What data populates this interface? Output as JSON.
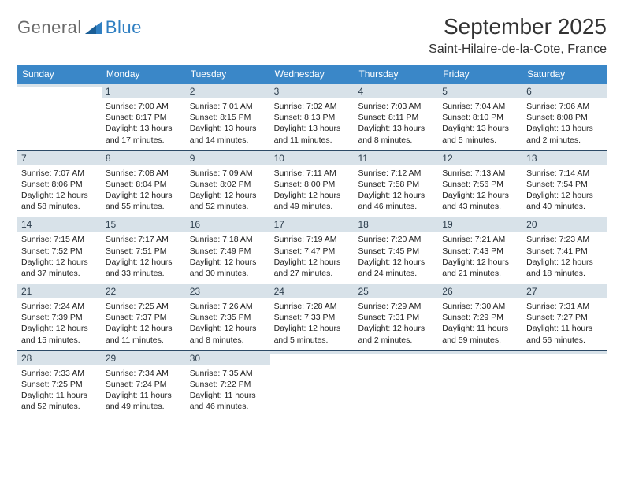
{
  "logo": {
    "text1": "General",
    "text2": "Blue",
    "color1": "#6b6b6b",
    "color2": "#2f7fc2"
  },
  "title": "September 2025",
  "location": "Saint-Hilaire-de-la-Cote, France",
  "header_bg": "#3a87c8",
  "band_bg": "#d8e2e9",
  "border_color": "#2c4a66",
  "days_of_week": [
    "Sunday",
    "Monday",
    "Tuesday",
    "Wednesday",
    "Thursday",
    "Friday",
    "Saturday"
  ],
  "weeks": [
    [
      {
        "n": "",
        "sr": "",
        "ss": "",
        "dl": ""
      },
      {
        "n": "1",
        "sr": "Sunrise: 7:00 AM",
        "ss": "Sunset: 8:17 PM",
        "dl": "Daylight: 13 hours and 17 minutes."
      },
      {
        "n": "2",
        "sr": "Sunrise: 7:01 AM",
        "ss": "Sunset: 8:15 PM",
        "dl": "Daylight: 13 hours and 14 minutes."
      },
      {
        "n": "3",
        "sr": "Sunrise: 7:02 AM",
        "ss": "Sunset: 8:13 PM",
        "dl": "Daylight: 13 hours and 11 minutes."
      },
      {
        "n": "4",
        "sr": "Sunrise: 7:03 AM",
        "ss": "Sunset: 8:11 PM",
        "dl": "Daylight: 13 hours and 8 minutes."
      },
      {
        "n": "5",
        "sr": "Sunrise: 7:04 AM",
        "ss": "Sunset: 8:10 PM",
        "dl": "Daylight: 13 hours and 5 minutes."
      },
      {
        "n": "6",
        "sr": "Sunrise: 7:06 AM",
        "ss": "Sunset: 8:08 PM",
        "dl": "Daylight: 13 hours and 2 minutes."
      }
    ],
    [
      {
        "n": "7",
        "sr": "Sunrise: 7:07 AM",
        "ss": "Sunset: 8:06 PM",
        "dl": "Daylight: 12 hours and 58 minutes."
      },
      {
        "n": "8",
        "sr": "Sunrise: 7:08 AM",
        "ss": "Sunset: 8:04 PM",
        "dl": "Daylight: 12 hours and 55 minutes."
      },
      {
        "n": "9",
        "sr": "Sunrise: 7:09 AM",
        "ss": "Sunset: 8:02 PM",
        "dl": "Daylight: 12 hours and 52 minutes."
      },
      {
        "n": "10",
        "sr": "Sunrise: 7:11 AM",
        "ss": "Sunset: 8:00 PM",
        "dl": "Daylight: 12 hours and 49 minutes."
      },
      {
        "n": "11",
        "sr": "Sunrise: 7:12 AM",
        "ss": "Sunset: 7:58 PM",
        "dl": "Daylight: 12 hours and 46 minutes."
      },
      {
        "n": "12",
        "sr": "Sunrise: 7:13 AM",
        "ss": "Sunset: 7:56 PM",
        "dl": "Daylight: 12 hours and 43 minutes."
      },
      {
        "n": "13",
        "sr": "Sunrise: 7:14 AM",
        "ss": "Sunset: 7:54 PM",
        "dl": "Daylight: 12 hours and 40 minutes."
      }
    ],
    [
      {
        "n": "14",
        "sr": "Sunrise: 7:15 AM",
        "ss": "Sunset: 7:52 PM",
        "dl": "Daylight: 12 hours and 37 minutes."
      },
      {
        "n": "15",
        "sr": "Sunrise: 7:17 AM",
        "ss": "Sunset: 7:51 PM",
        "dl": "Daylight: 12 hours and 33 minutes."
      },
      {
        "n": "16",
        "sr": "Sunrise: 7:18 AM",
        "ss": "Sunset: 7:49 PM",
        "dl": "Daylight: 12 hours and 30 minutes."
      },
      {
        "n": "17",
        "sr": "Sunrise: 7:19 AM",
        "ss": "Sunset: 7:47 PM",
        "dl": "Daylight: 12 hours and 27 minutes."
      },
      {
        "n": "18",
        "sr": "Sunrise: 7:20 AM",
        "ss": "Sunset: 7:45 PM",
        "dl": "Daylight: 12 hours and 24 minutes."
      },
      {
        "n": "19",
        "sr": "Sunrise: 7:21 AM",
        "ss": "Sunset: 7:43 PM",
        "dl": "Daylight: 12 hours and 21 minutes."
      },
      {
        "n": "20",
        "sr": "Sunrise: 7:23 AM",
        "ss": "Sunset: 7:41 PM",
        "dl": "Daylight: 12 hours and 18 minutes."
      }
    ],
    [
      {
        "n": "21",
        "sr": "Sunrise: 7:24 AM",
        "ss": "Sunset: 7:39 PM",
        "dl": "Daylight: 12 hours and 15 minutes."
      },
      {
        "n": "22",
        "sr": "Sunrise: 7:25 AM",
        "ss": "Sunset: 7:37 PM",
        "dl": "Daylight: 12 hours and 11 minutes."
      },
      {
        "n": "23",
        "sr": "Sunrise: 7:26 AM",
        "ss": "Sunset: 7:35 PM",
        "dl": "Daylight: 12 hours and 8 minutes."
      },
      {
        "n": "24",
        "sr": "Sunrise: 7:28 AM",
        "ss": "Sunset: 7:33 PM",
        "dl": "Daylight: 12 hours and 5 minutes."
      },
      {
        "n": "25",
        "sr": "Sunrise: 7:29 AM",
        "ss": "Sunset: 7:31 PM",
        "dl": "Daylight: 12 hours and 2 minutes."
      },
      {
        "n": "26",
        "sr": "Sunrise: 7:30 AM",
        "ss": "Sunset: 7:29 PM",
        "dl": "Daylight: 11 hours and 59 minutes."
      },
      {
        "n": "27",
        "sr": "Sunrise: 7:31 AM",
        "ss": "Sunset: 7:27 PM",
        "dl": "Daylight: 11 hours and 56 minutes."
      }
    ],
    [
      {
        "n": "28",
        "sr": "Sunrise: 7:33 AM",
        "ss": "Sunset: 7:25 PM",
        "dl": "Daylight: 11 hours and 52 minutes."
      },
      {
        "n": "29",
        "sr": "Sunrise: 7:34 AM",
        "ss": "Sunset: 7:24 PM",
        "dl": "Daylight: 11 hours and 49 minutes."
      },
      {
        "n": "30",
        "sr": "Sunrise: 7:35 AM",
        "ss": "Sunset: 7:22 PM",
        "dl": "Daylight: 11 hours and 46 minutes."
      },
      {
        "n": "",
        "sr": "",
        "ss": "",
        "dl": ""
      },
      {
        "n": "",
        "sr": "",
        "ss": "",
        "dl": ""
      },
      {
        "n": "",
        "sr": "",
        "ss": "",
        "dl": ""
      },
      {
        "n": "",
        "sr": "",
        "ss": "",
        "dl": ""
      }
    ]
  ]
}
